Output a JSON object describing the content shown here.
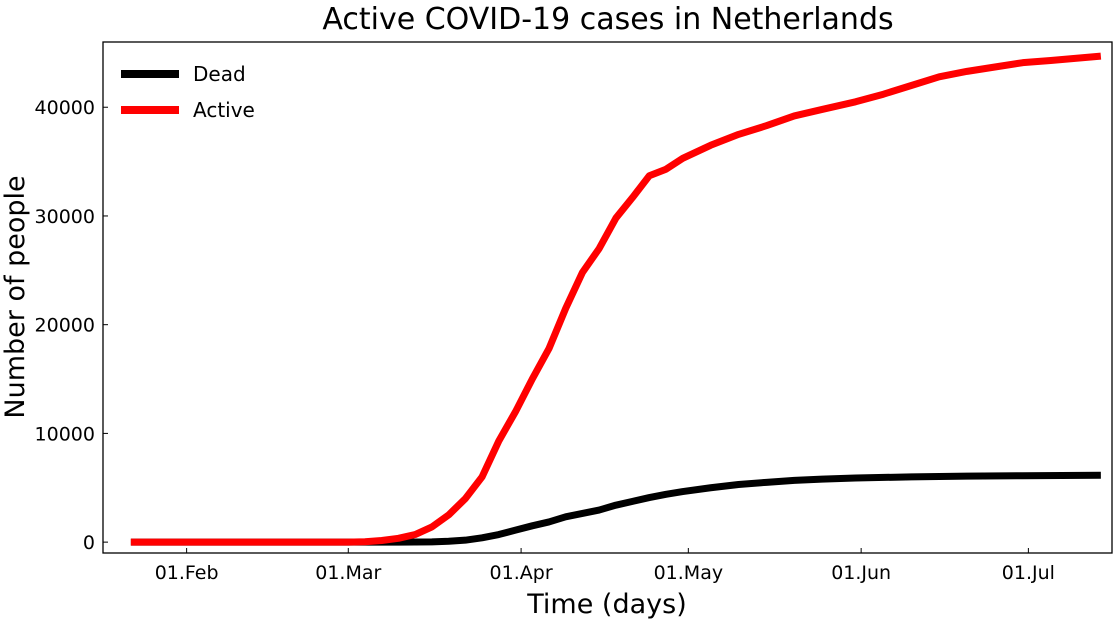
{
  "chart_data": {
    "type": "line",
    "title": "Active COVID-19 cases in Netherlands",
    "xlabel": "Time (days)",
    "ylabel": "Number of people",
    "x_axis_type": "date",
    "xlim": [
      "2020-01-17",
      "2020-07-16"
    ],
    "ylim": [
      -1000,
      46000
    ],
    "x_ticks": [
      {
        "date": "2020-02-01",
        "label": "01.Feb"
      },
      {
        "date": "2020-03-01",
        "label": "01.Mar"
      },
      {
        "date": "2020-04-01",
        "label": "01.Apr"
      },
      {
        "date": "2020-05-01",
        "label": "01.May"
      },
      {
        "date": "2020-06-01",
        "label": "01.Jun"
      },
      {
        "date": "2020-07-01",
        "label": "01.Jul"
      }
    ],
    "y_ticks": [
      {
        "value": 0,
        "label": "0"
      },
      {
        "value": 10000,
        "label": "10000"
      },
      {
        "value": 20000,
        "label": "20000"
      },
      {
        "value": 30000,
        "label": "30000"
      },
      {
        "value": 40000,
        "label": "40000"
      }
    ],
    "grid": false,
    "legend_position": "top-left",
    "series": [
      {
        "name": "Dead",
        "color": "#000000",
        "points": [
          {
            "x": "2020-01-22",
            "y": 0
          },
          {
            "x": "2020-02-15",
            "y": 0
          },
          {
            "x": "2020-03-01",
            "y": 0
          },
          {
            "x": "2020-03-06",
            "y": 0
          },
          {
            "x": "2020-03-10",
            "y": 4
          },
          {
            "x": "2020-03-13",
            "y": 10
          },
          {
            "x": "2020-03-16",
            "y": 20
          },
          {
            "x": "2020-03-19",
            "y": 76
          },
          {
            "x": "2020-03-22",
            "y": 180
          },
          {
            "x": "2020-03-25",
            "y": 400
          },
          {
            "x": "2020-03-28",
            "y": 700
          },
          {
            "x": "2020-03-31",
            "y": 1100
          },
          {
            "x": "2020-04-03",
            "y": 1500
          },
          {
            "x": "2020-04-06",
            "y": 1860
          },
          {
            "x": "2020-04-09",
            "y": 2330
          },
          {
            "x": "2020-04-12",
            "y": 2640
          },
          {
            "x": "2020-04-15",
            "y": 2950
          },
          {
            "x": "2020-04-18",
            "y": 3400
          },
          {
            "x": "2020-04-21",
            "y": 3750
          },
          {
            "x": "2020-04-24",
            "y": 4100
          },
          {
            "x": "2020-04-27",
            "y": 4400
          },
          {
            "x": "2020-04-30",
            "y": 4650
          },
          {
            "x": "2020-05-05",
            "y": 5000
          },
          {
            "x": "2020-05-10",
            "y": 5300
          },
          {
            "x": "2020-05-15",
            "y": 5500
          },
          {
            "x": "2020-05-20",
            "y": 5680
          },
          {
            "x": "2020-05-25",
            "y": 5800
          },
          {
            "x": "2020-05-31",
            "y": 5900
          },
          {
            "x": "2020-06-10",
            "y": 6000
          },
          {
            "x": "2020-06-20",
            "y": 6070
          },
          {
            "x": "2020-06-30",
            "y": 6110
          },
          {
            "x": "2020-07-14",
            "y": 6150
          }
        ]
      },
      {
        "name": "Active",
        "color": "#ff0000",
        "points": [
          {
            "x": "2020-01-22",
            "y": 0
          },
          {
            "x": "2020-02-15",
            "y": 0
          },
          {
            "x": "2020-03-01",
            "y": 0
          },
          {
            "x": "2020-03-04",
            "y": 30
          },
          {
            "x": "2020-03-07",
            "y": 150
          },
          {
            "x": "2020-03-10",
            "y": 350
          },
          {
            "x": "2020-03-13",
            "y": 700
          },
          {
            "x": "2020-03-16",
            "y": 1400
          },
          {
            "x": "2020-03-19",
            "y": 2500
          },
          {
            "x": "2020-03-22",
            "y": 4000
          },
          {
            "x": "2020-03-25",
            "y": 6000
          },
          {
            "x": "2020-03-28",
            "y": 9300
          },
          {
            "x": "2020-03-31",
            "y": 12000
          },
          {
            "x": "2020-04-03",
            "y": 15000
          },
          {
            "x": "2020-04-06",
            "y": 17800
          },
          {
            "x": "2020-04-09",
            "y": 21500
          },
          {
            "x": "2020-04-12",
            "y": 24800
          },
          {
            "x": "2020-04-15",
            "y": 27000
          },
          {
            "x": "2020-04-18",
            "y": 29800
          },
          {
            "x": "2020-04-21",
            "y": 31700
          },
          {
            "x": "2020-04-24",
            "y": 33700
          },
          {
            "x": "2020-04-27",
            "y": 34300
          },
          {
            "x": "2020-04-30",
            "y": 35300
          },
          {
            "x": "2020-05-05",
            "y": 36500
          },
          {
            "x": "2020-05-10",
            "y": 37500
          },
          {
            "x": "2020-05-15",
            "y": 38300
          },
          {
            "x": "2020-05-20",
            "y": 39200
          },
          {
            "x": "2020-05-25",
            "y": 39800
          },
          {
            "x": "2020-05-31",
            "y": 40500
          },
          {
            "x": "2020-06-05",
            "y": 41200
          },
          {
            "x": "2020-06-10",
            "y": 42000
          },
          {
            "x": "2020-06-15",
            "y": 42800
          },
          {
            "x": "2020-06-20",
            "y": 43300
          },
          {
            "x": "2020-06-25",
            "y": 43700
          },
          {
            "x": "2020-06-30",
            "y": 44100
          },
          {
            "x": "2020-07-05",
            "y": 44300
          },
          {
            "x": "2020-07-14",
            "y": 44700
          }
        ]
      }
    ]
  }
}
